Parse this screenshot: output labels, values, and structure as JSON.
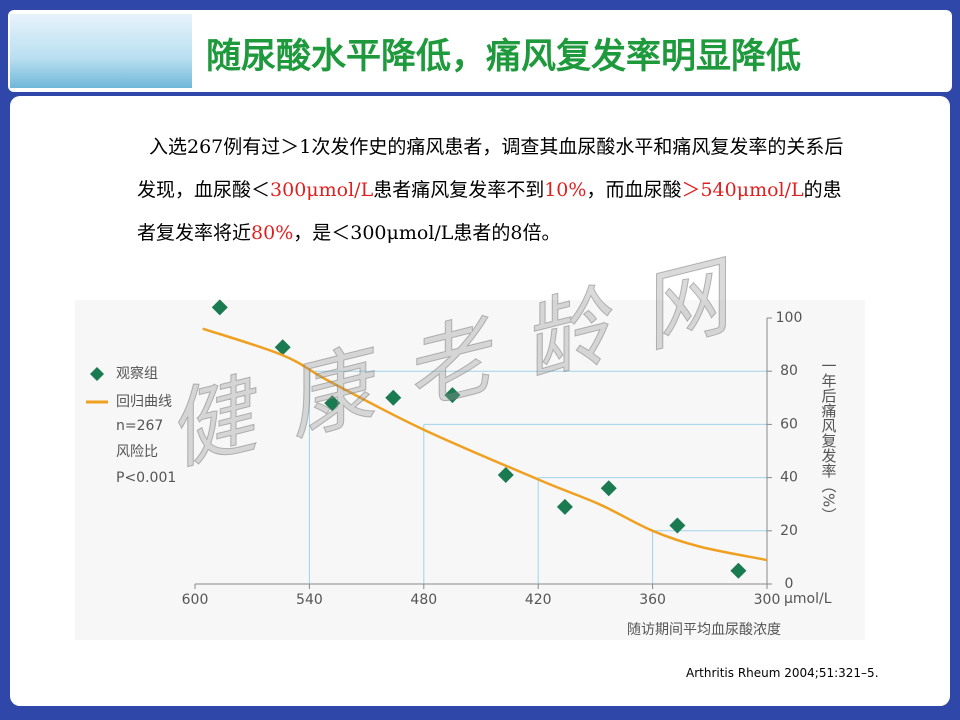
{
  "slide": {
    "title": "随尿酸水平降低，痛风复发率明显降低",
    "paragraph": [
      "入选267例有过＞1次发作史的痛风患者，调查其血尿酸水平和痛风复发率的关系后发现，血尿酸＜",
      "300μmol/L",
      "患者痛风复发率不到",
      "10%",
      "，而血尿酸",
      "＞540μmol/L",
      "的患者复发率将近",
      "80%",
      "，是＜300μmol/L患者的8倍。"
    ],
    "watermark": "健康老龄网",
    "citation": "Arthritis Rheum 2004;51:321–5."
  },
  "chart_data": {
    "type": "scatter",
    "x_label": "随访期间平均血尿酸浓度",
    "x_unit": "μmol/L",
    "y_label": "一年后痛风复发率（%）",
    "annotations": [
      "n=267",
      "风险比",
      "P<0.001"
    ],
    "xlim": [
      600,
      300
    ],
    "xticks": [
      600,
      540,
      480,
      420,
      360,
      300
    ],
    "ylim": [
      0,
      100
    ],
    "yticks": [
      0,
      20,
      40,
      60,
      80,
      100
    ],
    "series": [
      {
        "name": "观察组",
        "type": "scatter",
        "color": "#1a7a50",
        "x": [
          587,
          554,
          528,
          496,
          465,
          437,
          406,
          383,
          347,
          315
        ],
        "values": [
          104,
          89,
          68,
          70,
          71,
          41,
          29,
          36,
          22,
          5
        ]
      },
      {
        "name": "回归曲线",
        "type": "line",
        "color": "#f0a020",
        "x": [
          596,
          554,
          529,
          480,
          419,
          388,
          360,
          335,
          300
        ],
        "values": [
          96,
          86,
          76,
          58,
          39,
          30,
          20,
          14,
          9
        ]
      }
    ]
  }
}
